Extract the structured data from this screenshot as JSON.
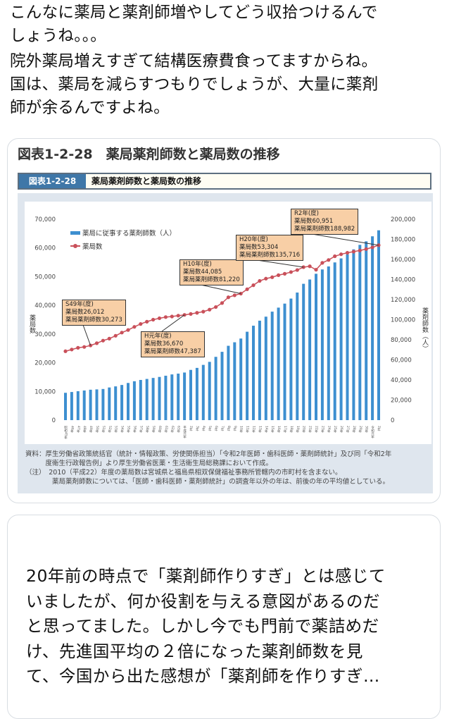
{
  "tweet": {
    "lines": [
      "こんなに薬局と薬剤師増やしてどう収拾つけるんで",
      "しょうね。。。",
      "院外薬局増えすぎて結構医療費食ってますからね。",
      "国は、薬局を減らすつもりでしょうが、大量に薬剤",
      "師が余るんですよね。"
    ]
  },
  "card": {
    "title": "図表1-2-28　薬局薬剤師数と薬局数の推移",
    "fig_tag": "図表1-2-28",
    "fig_title": "薬局薬剤師数と薬局数の推移",
    "notes": [
      "資料：厚生労働省政策統括官（統計・情報政策、労使関係担当）「令和2年医師・歯科医師・薬剤師統計」及び同「令和2年",
      "　　　度衛生行政報告例」より厚生労働省医薬・生活衛生局総務課において作成。",
      "（注）　2010（平成22）年度の薬局数は宮城県と福島県相双保健福祉事務所管轄内の市町村を含まない。",
      "　　　　薬局薬剤師数については、「医師・歯科医師・薬剤師統計」の調査年以外の年は、前後の年の平均値としている。"
    ]
  },
  "chart_data": {
    "type": "bar+line",
    "ylabel_left": "薬局数",
    "ylabel_right": "薬剤師数（人）",
    "ylim_left": [
      0,
      70000
    ],
    "ylim_right": [
      0,
      200000
    ],
    "yticks_left": [
      "0",
      "10,000",
      "20,000",
      "30,000",
      "40,000",
      "50,000",
      "60,000",
      "70,000"
    ],
    "yticks_right": [
      "0",
      "20,000",
      "40,000",
      "60,000",
      "80,000",
      "100,000",
      "120,000",
      "140,000",
      "160,000",
      "180,000",
      "200,000"
    ],
    "categories": [
      "昭和45年",
      "46年",
      "47年",
      "48年",
      "49年",
      "50年",
      "51年",
      "52年",
      "53年",
      "54年",
      "55年",
      "56年",
      "57年",
      "58年",
      "59年",
      "60年",
      "61年",
      "62年",
      "63年",
      "平成元年",
      "2年",
      "3年",
      "4年",
      "5年",
      "6年",
      "7年",
      "8年",
      "9年",
      "10年",
      "11年",
      "12年",
      "13年",
      "14年",
      "15年",
      "16年",
      "17年",
      "18年",
      "19年",
      "20年",
      "21年",
      "22年",
      "23年",
      "24年",
      "25年",
      "26年",
      "27年",
      "28年",
      "29年",
      "30年",
      "令和元年",
      "2年"
    ],
    "series": [
      {
        "name": "薬局に従事する薬剤師数（人）",
        "type": "bar",
        "axis": "right",
        "color": "#3d8fd0",
        "values": [
          27200,
          28000,
          28800,
          29500,
          30273,
          30600,
          31000,
          32500,
          33600,
          35000,
          37000,
          38700,
          40000,
          41000,
          42000,
          43000,
          44200,
          45500,
          46300,
          47387,
          50000,
          52000,
          55000,
          58000,
          63000,
          68000,
          74000,
          77500,
          81220,
          88000,
          94000,
          99000,
          103000,
          108000,
          112000,
          116000,
          121000,
          127000,
          135716,
          140000,
          145700,
          150000,
          153000,
          157000,
          161000,
          165000,
          170000,
          174500,
          178000,
          183000,
          188982
        ]
      },
      {
        "name": "薬局数",
        "type": "line",
        "axis": "left",
        "color": "#c9505a",
        "values": [
          24000,
          24600,
          25200,
          25500,
          26012,
          26800,
          27700,
          28400,
          29400,
          30500,
          31400,
          32500,
          33500,
          34300,
          35000,
          35500,
          35900,
          36100,
          36400,
          36670,
          37000,
          37400,
          37800,
          38500,
          39400,
          40800,
          42800,
          43500,
          44085,
          45600,
          47000,
          48500,
          49300,
          49800,
          50500,
          51000,
          51600,
          52300,
          53304,
          53600,
          52400,
          54800,
          55800,
          57100,
          57800,
          58300,
          58700,
          59100,
          59600,
          60200,
          60951
        ]
      }
    ],
    "annotations": [
      {
        "index": 4,
        "lines": [
          "S49年(度)",
          "薬局数26,012",
          "薬局薬剤師数30,273"
        ]
      },
      {
        "index": 19,
        "lines": [
          "H元年(度)",
          "薬局数36,670",
          "薬局薬剤師数47,387"
        ]
      },
      {
        "index": 28,
        "lines": [
          "H10年(度)",
          "薬局数44,085",
          "薬局薬剤師数81,220"
        ]
      },
      {
        "index": 38,
        "lines": [
          "H20年(度)",
          "薬局数53,304",
          "薬局薬剤師数135,716"
        ]
      },
      {
        "index": 50,
        "lines": [
          "R2年(度)",
          "薬局数60,951",
          "薬局薬剤師数188,982"
        ]
      }
    ],
    "legend": "top-left",
    "grid": false
  },
  "reply": {
    "lines": [
      "20年前の時点で「薬剤師作りすぎ」とは感じて",
      "いましたが、何か役割を与える意図があるのだ",
      "と思ってました。しかし今でも門前で薬詰めだ",
      "け、先進国平均の２倍になった薬剤師数を見",
      "て、今国から出た感想が「薬剤師を作りすぎ…"
    ]
  }
}
